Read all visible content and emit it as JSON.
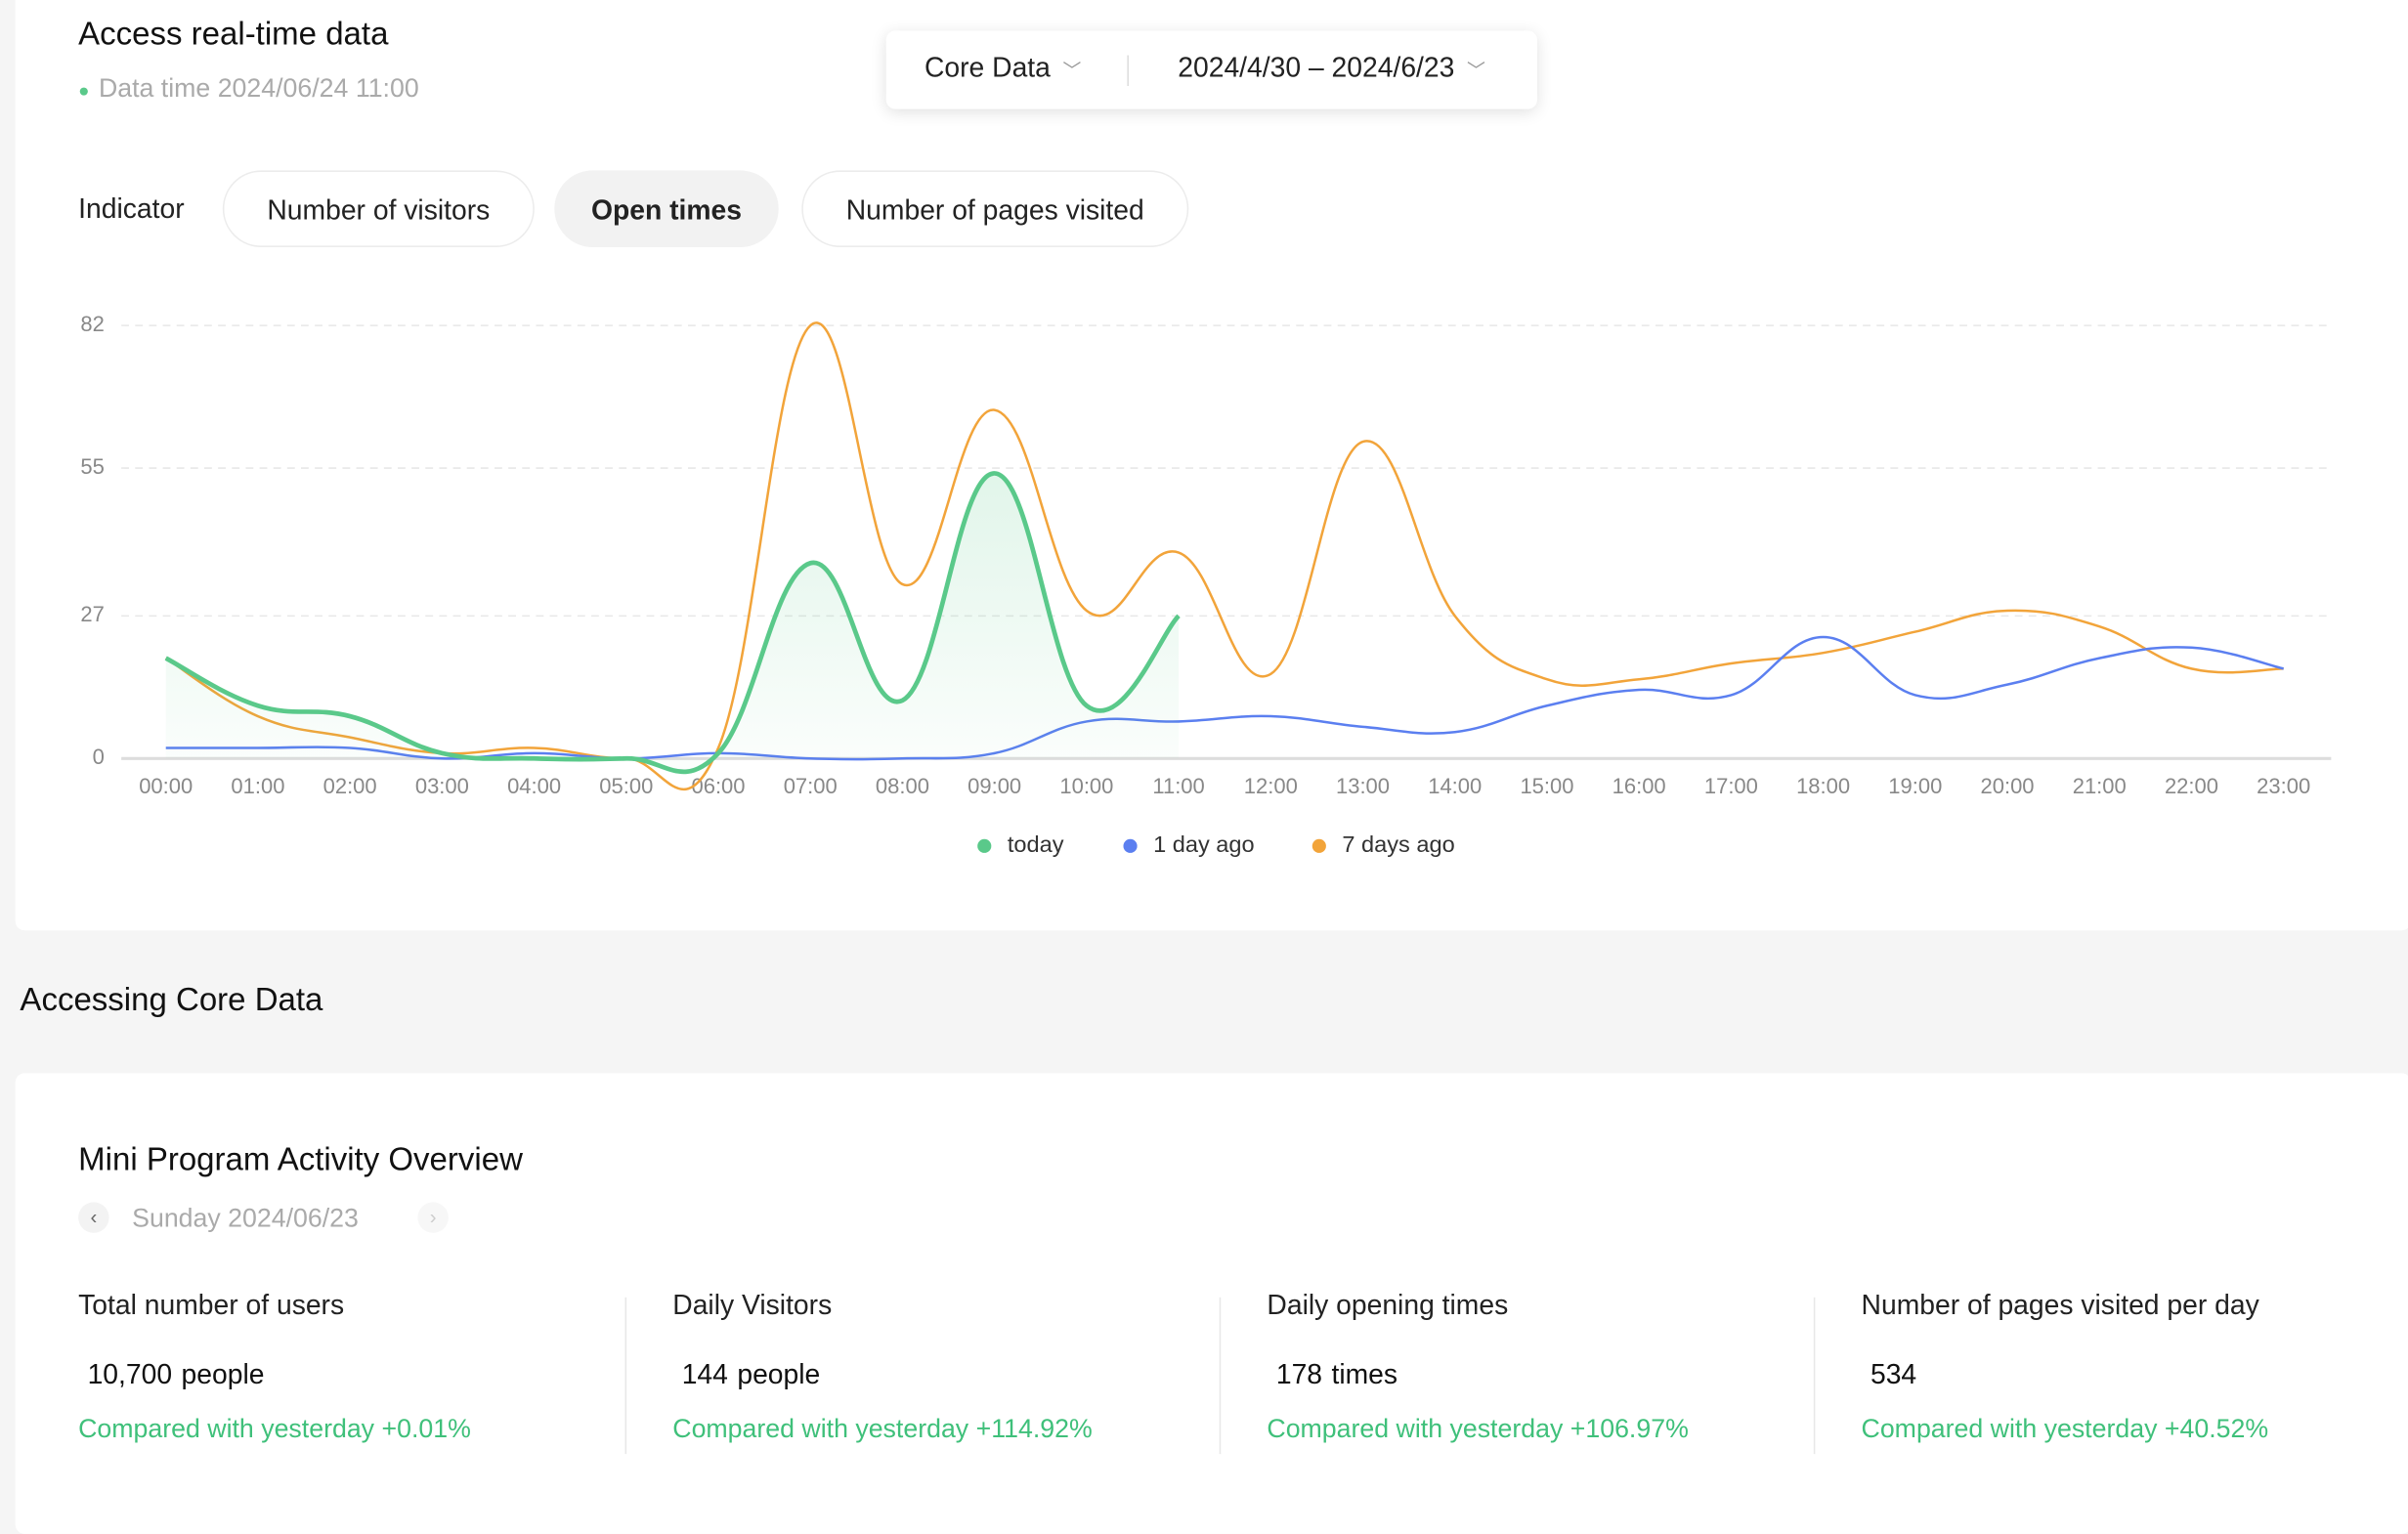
{
  "header": {
    "title": "Access real-time data",
    "data_time": "Data time 2024/06/24 11:00"
  },
  "filter": {
    "scope": "Core Data",
    "date_range": "2024/4/30 – 2024/6/23"
  },
  "indicator": {
    "label": "Indicator",
    "tabs": [
      "Number of visitors",
      "Open times",
      "Number of pages visited"
    ],
    "active": 1
  },
  "chart_data": {
    "type": "line",
    "categories": [
      "00:00",
      "01:00",
      "02:00",
      "03:00",
      "04:00",
      "05:00",
      "06:00",
      "07:00",
      "08:00",
      "09:00",
      "10:00",
      "11:00",
      "12:00",
      "13:00",
      "14:00",
      "15:00",
      "16:00",
      "17:00",
      "18:00",
      "19:00",
      "20:00",
      "21:00",
      "22:00",
      "23:00"
    ],
    "series": [
      {
        "name": "today",
        "color": "#5ac98a",
        "values": [
          19,
          10,
          8,
          1,
          0,
          0,
          1,
          37,
          11,
          54,
          10,
          27,
          null,
          null,
          null,
          null,
          null,
          null,
          null,
          null,
          null,
          null,
          null,
          null
        ]
      },
      {
        "name": "1 day ago",
        "color": "#5b7ff0",
        "values": [
          2,
          2,
          2,
          0,
          1,
          0,
          1,
          0,
          0,
          1,
          7,
          7,
          8,
          6,
          5,
          10,
          13,
          12,
          23,
          12,
          14,
          19,
          21,
          17
        ]
      },
      {
        "name": "7 days ago",
        "color": "#f2a43a",
        "values": [
          19,
          8,
          4,
          1,
          2,
          0,
          2,
          82,
          33,
          66,
          28,
          39,
          16,
          60,
          27,
          15,
          15,
          18,
          20,
          24,
          28,
          25,
          17,
          17
        ]
      }
    ],
    "ylim": [
      0,
      82
    ],
    "yticks": [
      0,
      27,
      55,
      82
    ],
    "grid": true,
    "legend": "bottom"
  },
  "section_title": "Accessing Core Data",
  "overview": {
    "title": "Mini Program Activity Overview",
    "date": "Sunday 2024/06/23",
    "metrics": [
      {
        "label": "Total number of users",
        "value": "10,700",
        "unit": "people",
        "compare": "Compared with yesterday",
        "change": "+0.01%"
      },
      {
        "label": "Daily Visitors",
        "value": "144",
        "unit": "people",
        "compare": "Compared with yesterday",
        "change": "+114.92%"
      },
      {
        "label": "Daily opening times",
        "value": "178",
        "unit": "times",
        "compare": "Compared with yesterday",
        "change": "+106.97%"
      },
      {
        "label": "Number of pages visited per day",
        "value": "534",
        "compare": "Compared with yesterday",
        "change": "+40.52%"
      }
    ]
  }
}
